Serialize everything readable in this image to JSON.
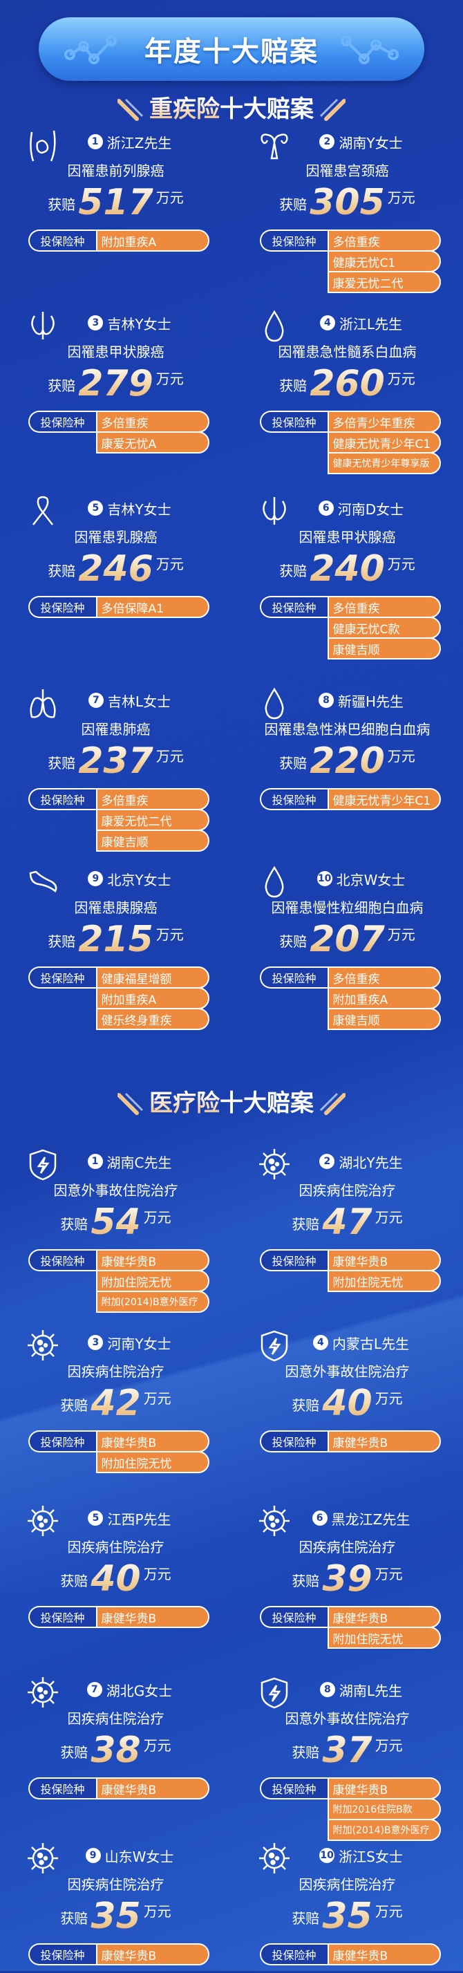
{
  "page_title": "年度十大赔案",
  "colors": {
    "background": "#1b42b4",
    "plan_item": "#ee8a3e",
    "amount_gold": "#f2c58c"
  },
  "plan_label": "投保险种",
  "payout_prefix": "获赔",
  "payout_unit": "万元",
  "sections": [
    {
      "title_highlight": "重疾险",
      "title_rest": "十大赔案",
      "cases": [
        {
          "rank": "1",
          "icon": "prostate-icon",
          "name": "浙江Z先生",
          "diagnosis": "因罹患前列腺癌",
          "amount": "517",
          "plans": [
            "附加重疾A"
          ]
        },
        {
          "rank": "2",
          "icon": "uterus-icon",
          "name": "湖南Y女士",
          "diagnosis": "因罹患宫颈癌",
          "amount": "305",
          "plans": [
            "多倍重疾",
            "健康无忧C1",
            "康爱无忧二代"
          ]
        },
        {
          "rank": "3",
          "icon": "thyroid-icon",
          "name": "吉林Y女士",
          "diagnosis": "因罹患甲状腺癌",
          "amount": "279",
          "plans": [
            "多倍重疾",
            "康爱无忧A"
          ]
        },
        {
          "rank": "4",
          "icon": "blood-drop-icon",
          "name": "浙江L先生",
          "diagnosis": "因罹患急性髓系白血病",
          "amount": "260",
          "plans": [
            "多倍青少年重疾",
            "健康无忧青少年C1",
            "健康无忧青少年尊享版"
          ]
        },
        {
          "rank": "5",
          "icon": "ribbon-icon",
          "name": "吉林Y女士",
          "diagnosis": "因罹患乳腺癌",
          "amount": "246",
          "plans": [
            "多倍保障A1"
          ]
        },
        {
          "rank": "6",
          "icon": "thyroid-icon",
          "name": "河南D女士",
          "diagnosis": "因罹患甲状腺癌",
          "amount": "240",
          "plans": [
            "多倍重疾",
            "健康无忧C款",
            "康健吉顺"
          ]
        },
        {
          "rank": "7",
          "icon": "lungs-icon",
          "name": "吉林L女士",
          "diagnosis": "因罹患肺癌",
          "amount": "237",
          "plans": [
            "多倍重疾",
            "康爱无忧二代",
            "康健吉顺"
          ]
        },
        {
          "rank": "8",
          "icon": "blood-drop-icon",
          "name": "新疆H先生",
          "diagnosis": "因罹患急性淋巴细胞白血病",
          "amount": "220",
          "plans": [
            "健康无忧青少年C1"
          ]
        },
        {
          "rank": "9",
          "icon": "pancreas-icon",
          "name": "北京Y女士",
          "diagnosis": "因罹患胰腺癌",
          "amount": "215",
          "plans": [
            "健康福星增额",
            "附加重疾A",
            "健乐终身重疾"
          ]
        },
        {
          "rank": "10",
          "icon": "blood-drop-icon",
          "name": "北京W女士",
          "diagnosis": "因罹患慢性粒细胞白血病",
          "amount": "207",
          "plans": [
            "多倍重疾",
            "附加重疾A",
            "康健吉顺"
          ]
        }
      ]
    },
    {
      "title_highlight": "医疗险",
      "title_rest": "十大赔案",
      "cases": [
        {
          "rank": "1",
          "icon": "shield-bolt-icon",
          "name": "湖南C先生",
          "diagnosis": "因意外事故住院治疗",
          "amount": "54",
          "plans": [
            "康健华贵B",
            "附加住院无忧",
            "附加(2014)B意外医疗"
          ]
        },
        {
          "rank": "2",
          "icon": "virus-icon",
          "name": "湖北Y先生",
          "diagnosis": "因疾病住院治疗",
          "amount": "47",
          "plans": [
            "康健华贵B",
            "附加住院无忧"
          ]
        },
        {
          "rank": "3",
          "icon": "virus-icon",
          "name": "河南Y女士",
          "diagnosis": "因疾病住院治疗",
          "amount": "42",
          "plans": [
            "康健华贵B",
            "附加住院无忧"
          ]
        },
        {
          "rank": "4",
          "icon": "shield-bolt-icon",
          "name": "内蒙古L先生",
          "diagnosis": "因意外事故住院治疗",
          "amount": "40",
          "plans": [
            "康健华贵B"
          ]
        },
        {
          "rank": "5",
          "icon": "virus-icon",
          "name": "江西P先生",
          "diagnosis": "因疾病住院治疗",
          "amount": "40",
          "plans": [
            "康健华贵B"
          ]
        },
        {
          "rank": "6",
          "icon": "virus-icon",
          "name": "黑龙江Z先生",
          "diagnosis": "因疾病住院治疗",
          "amount": "39",
          "plans": [
            "康健华贵B",
            "附加住院无忧"
          ]
        },
        {
          "rank": "7",
          "icon": "virus-icon",
          "name": "湖北G女士",
          "diagnosis": "因疾病住院治疗",
          "amount": "38",
          "plans": [
            "康健华贵B"
          ]
        },
        {
          "rank": "8",
          "icon": "shield-bolt-icon",
          "name": "湖南L先生",
          "diagnosis": "因意外事故住院治疗",
          "amount": "37",
          "plans": [
            "康健华贵B",
            "附加2016住院B款",
            "附加(2014)B意外医疗"
          ]
        },
        {
          "rank": "9",
          "icon": "virus-icon",
          "name": "山东W女士",
          "diagnosis": "因疾病住院治疗",
          "amount": "35",
          "plans": [
            "康健华贵B"
          ]
        },
        {
          "rank": "10",
          "icon": "virus-icon",
          "name": "浙江S女士",
          "diagnosis": "因疾病住院治疗",
          "amount": "35",
          "plans": [
            "康健华贵B"
          ]
        }
      ]
    }
  ]
}
